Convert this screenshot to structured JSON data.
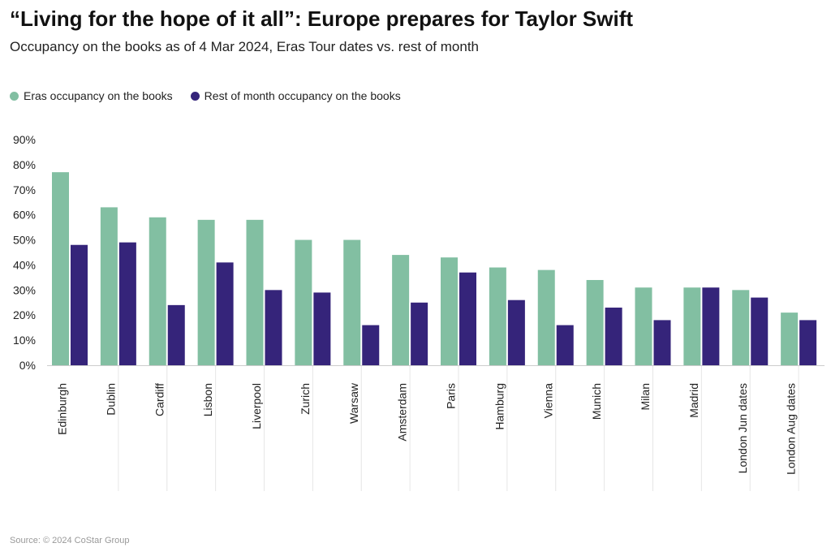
{
  "title": "“Living for the hope of it all”: Europe prepares for Taylor Swift",
  "subtitle": "Occupancy on the books as of 4 Mar 2024, Eras Tour dates vs. rest of month",
  "source": "Source: © 2024 CoStar Group",
  "colors": {
    "eras": "#82bfa2",
    "rest": "#35247a",
    "grid": "#e6e6e6",
    "text": "#222222"
  },
  "chart_data": {
    "type": "bar",
    "title": "“Living for the hope of it all”: Europe prepares for Taylor Swift",
    "subtitle": "Occupancy on the books as of 4 Mar 2024, Eras Tour dates vs. rest of month",
    "xlabel": "",
    "ylabel": "",
    "ylim": [
      0,
      90
    ],
    "yticks": [
      "0%",
      "10%",
      "20%",
      "30%",
      "40%",
      "50%",
      "60%",
      "70%",
      "80%",
      "90%"
    ],
    "grid": "vertical separators",
    "legend_position": "top-left",
    "categories": [
      "Edinburgh",
      "Dublin",
      "Cardiff",
      "Lisbon",
      "Liverpool",
      "Zurich",
      "Warsaw",
      "Amsterdam",
      "Paris",
      "Hamburg",
      "Vienna",
      "Munich",
      "Milan",
      "Madrid",
      "London Jun dates",
      "London Aug dates"
    ],
    "series": [
      {
        "name": "Eras occupancy on the books",
        "color": "#82bfa2",
        "values": [
          77,
          63,
          59,
          58,
          58,
          50,
          50,
          44,
          43,
          39,
          38,
          34,
          31,
          31,
          30,
          21
        ]
      },
      {
        "name": "Rest of month occupancy on the books",
        "color": "#35247a",
        "values": [
          48,
          49,
          24,
          41,
          30,
          29,
          16,
          25,
          37,
          26,
          16,
          23,
          18,
          31,
          27,
          18
        ]
      }
    ]
  }
}
